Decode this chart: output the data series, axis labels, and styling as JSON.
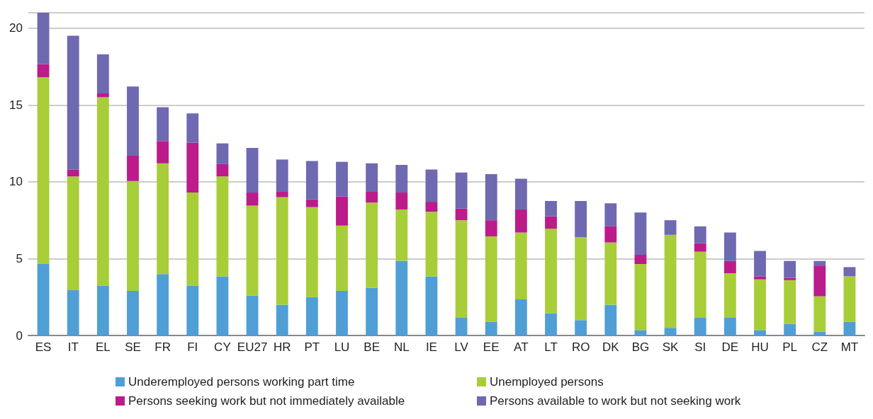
{
  "chart_data": {
    "type": "bar",
    "stacked": true,
    "categories": [
      "ES",
      "IT",
      "EL",
      "SE",
      "FR",
      "FI",
      "CY",
      "EU27",
      "HR",
      "PT",
      "LU",
      "BE",
      "NL",
      "IE",
      "LV",
      "EE",
      "AT",
      "LT",
      "RO",
      "DK",
      "BG",
      "SK",
      "SI",
      "DE",
      "HU",
      "PL",
      "CZ",
      "MT"
    ],
    "series": [
      {
        "name": "Underemployed persons working part time",
        "color": "#4f9fd6",
        "values": [
          4.65,
          2.95,
          3.25,
          2.9,
          4.0,
          3.25,
          3.85,
          2.6,
          2.0,
          2.5,
          2.9,
          3.1,
          4.85,
          3.85,
          1.15,
          0.9,
          2.35,
          1.45,
          1.0,
          2.0,
          0.35,
          0.5,
          1.15,
          1.15,
          0.35,
          0.75,
          0.25,
          0.9
        ]
      },
      {
        "name": "Unemployed persons",
        "color": "#a7ce39",
        "values": [
          12.15,
          7.4,
          12.25,
          7.15,
          7.2,
          6.05,
          6.5,
          5.85,
          7.0,
          5.85,
          4.25,
          5.55,
          3.35,
          4.2,
          6.35,
          5.55,
          4.35,
          5.5,
          5.4,
          4.05,
          4.3,
          6.05,
          4.3,
          2.9,
          3.3,
          2.85,
          2.3,
          2.95
        ]
      },
      {
        "name": "Persons seeking work but not immediately available",
        "color": "#bc1b8a",
        "values": [
          0.85,
          0.45,
          0.25,
          1.65,
          1.45,
          3.25,
          0.8,
          0.85,
          0.35,
          0.5,
          1.9,
          0.7,
          1.1,
          0.65,
          0.75,
          1.05,
          1.5,
          0.8,
          0,
          1.05,
          0.6,
          0,
          0.55,
          0.8,
          0.2,
          0.15,
          2.0,
          0
        ]
      },
      {
        "name": "Persons available to work but not seeking work",
        "color": "#6e69b1",
        "values": [
          3.35,
          8.7,
          2.55,
          4.5,
          2.2,
          1.9,
          1.35,
          2.9,
          2.1,
          2.5,
          2.25,
          1.85,
          1.8,
          2.1,
          2.35,
          3.0,
          2.0,
          1.0,
          2.35,
          1.5,
          2.75,
          0.95,
          1.1,
          1.85,
          1.65,
          1.1,
          0.3,
          0.6
        ]
      }
    ],
    "ylim": [
      0,
      21
    ],
    "yticks": [
      0,
      5,
      10,
      15,
      20
    ],
    "grid": "y",
    "legend": "bottom"
  }
}
